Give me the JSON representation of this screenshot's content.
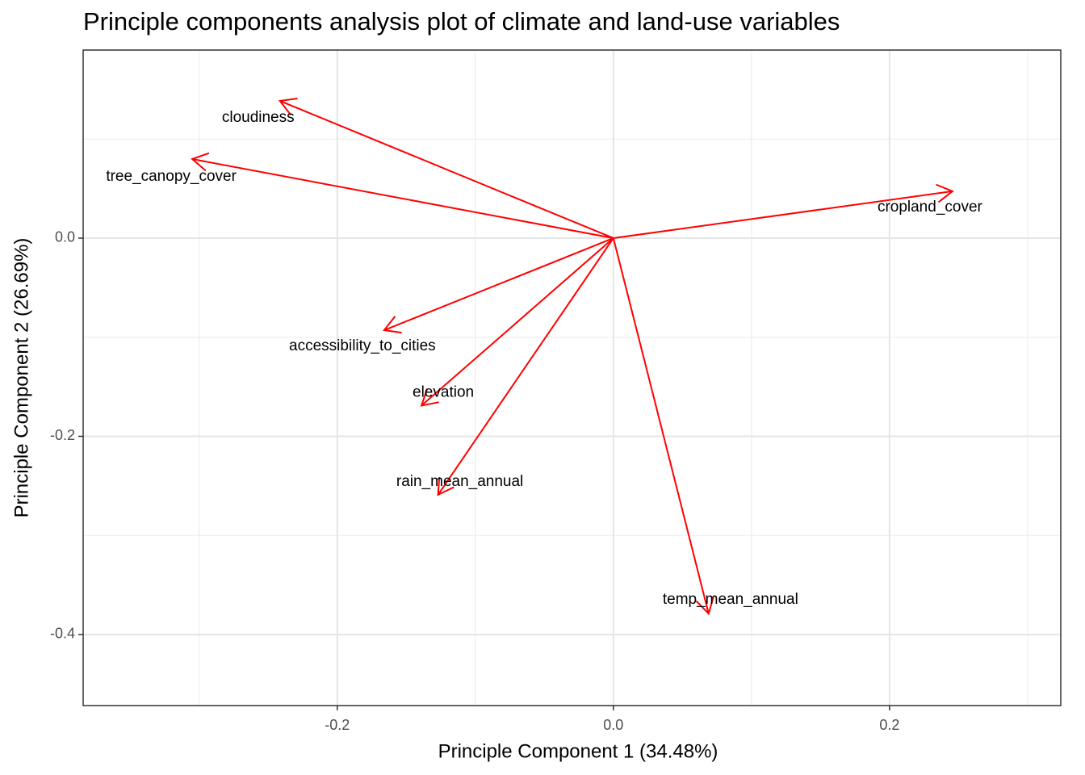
{
  "chart_data": {
    "type": "biplot",
    "title": "Principle components analysis plot of climate and land-use variables",
    "x_label": "Principle Component 1 (34.48%)",
    "y_label": "Principle Component 2 (26.69%)",
    "color": "#ff0000",
    "vectors": [
      {
        "label": "cloudiness",
        "x": -0.2415,
        "y": 0.1385
      },
      {
        "label": "tree_canopy_cover",
        "x": -0.305,
        "y": 0.0798
      },
      {
        "label": "cropland_cover",
        "x": 0.2456,
        "y": 0.0473
      },
      {
        "label": "accessibility_to_cities",
        "x": -0.166,
        "y": -0.0929
      },
      {
        "label": "elevation",
        "x": -0.139,
        "y": -0.169
      },
      {
        "label": "rain_mean_annual",
        "x": -0.127,
        "y": -0.259
      },
      {
        "label": "temp_mean_annual",
        "x": 0.069,
        "y": -0.379
      }
    ],
    "xlim": [
      -0.384,
      0.324
    ],
    "ylim": [
      -0.4717,
      0.1898
    ],
    "xticks": [
      {
        "value": -0.2,
        "label": "-0.2"
      },
      {
        "value": 0,
        "label": "0.0"
      },
      {
        "value": 0.2,
        "label": "0.2"
      }
    ],
    "yticks": [
      {
        "value": -0.4,
        "label": "-0.4"
      },
      {
        "value": -0.2,
        "label": "-0.2"
      },
      {
        "value": 0,
        "label": "0.0"
      }
    ],
    "x_minor_ticks": [
      -0.3,
      -0.1,
      0.1,
      0.3
    ],
    "y_minor_ticks": [
      -0.3,
      -0.1,
      0.1
    ],
    "grid": true
  }
}
